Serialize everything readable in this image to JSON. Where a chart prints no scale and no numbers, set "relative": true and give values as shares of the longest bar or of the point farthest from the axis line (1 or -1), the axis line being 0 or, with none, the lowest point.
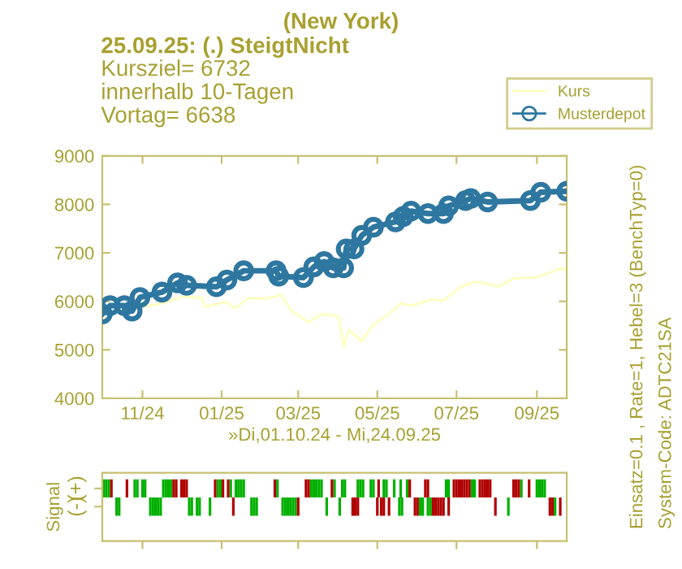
{
  "chart_data": [
    {
      "type": "line",
      "title": "(New York)",
      "subtitle": "25.09.25: (.) SteigtNicht",
      "annotations": [
        "Kursziel= 6732",
        "innerhalb 10-Tagen",
        "Vortag= 6638",
        "Einsatz=0.1 , Rate=1, Hebel=3 (BenchTyp=0)",
        "System-Code: ADTC21SA"
      ],
      "xlabel": "»Di,01.10.24 - Mi,24.09.25",
      "xlim": [
        "2024-10-01",
        "2025-09-24"
      ],
      "xticks": [
        {
          "value": "2024-11-01",
          "label": "11/24"
        },
        {
          "value": "2025-01-01",
          "label": "01/25"
        },
        {
          "value": "2025-03-01",
          "label": "03/25"
        },
        {
          "value": "2025-05-01",
          "label": "05/25"
        },
        {
          "value": "2025-07-01",
          "label": "07/25"
        },
        {
          "value": "2025-09-01",
          "label": "09/25"
        }
      ],
      "ylim": [
        4000,
        9000
      ],
      "yticks": [
        4000,
        5000,
        6000,
        7000,
        8000,
        9000
      ],
      "legend": "top right",
      "series": [
        {
          "name": "Kurs",
          "color": "#ffffc0",
          "marker": "none",
          "x": [
            "2024-10-01",
            "2024-10-26",
            "2024-11-16",
            "2024-12-03",
            "2024-12-17",
            "2024-12-19",
            "2025-01-05",
            "2025-01-11",
            "2025-01-22",
            "2025-02-03",
            "2025-02-16",
            "2025-02-24",
            "2025-03-09",
            "2025-03-19",
            "2025-04-01",
            "2025-04-05",
            "2025-04-09",
            "2025-04-19",
            "2025-04-28",
            "2025-05-10",
            "2025-05-19",
            "2025-05-27",
            "2025-06-13",
            "2025-06-21",
            "2025-07-04",
            "2025-07-16",
            "2025-07-27",
            "2025-08-02",
            "2025-08-14",
            "2025-08-31",
            "2025-09-21",
            "2025-09-24"
          ],
          "values": [
            5740,
            5850,
            5960,
            6100,
            6070,
            5890,
            5990,
            5850,
            6070,
            6050,
            6130,
            5800,
            5570,
            5740,
            5690,
            5070,
            5410,
            5180,
            5520,
            5740,
            5960,
            5910,
            6040,
            6020,
            6300,
            6410,
            6350,
            6300,
            6470,
            6490,
            6690,
            6600
          ]
        },
        {
          "name": "Musterdepot",
          "color": "#2e77a0",
          "marker": "circle",
          "x": [
            "2024-10-01",
            "2024-10-07",
            "2024-10-18",
            "2024-10-24",
            "2024-10-30",
            "2024-11-16",
            "2024-11-28",
            "2024-12-05",
            "2024-12-28",
            "2025-01-05",
            "2025-01-18",
            "2025-02-12",
            "2025-02-14",
            "2025-03-05",
            "2025-03-13",
            "2025-03-21",
            "2025-03-28",
            "2025-04-05",
            "2025-04-07",
            "2025-04-13",
            "2025-04-19",
            "2025-04-28",
            "2025-05-15",
            "2025-05-21",
            "2025-05-27",
            "2025-06-09",
            "2025-06-21",
            "2025-06-25",
            "2025-07-08",
            "2025-07-12",
            "2025-07-25",
            "2025-08-27",
            "2025-09-04",
            "2025-09-24"
          ],
          "values": [
            5740,
            5910,
            5910,
            5800,
            6080,
            6190,
            6380,
            6330,
            6300,
            6440,
            6630,
            6630,
            6520,
            6490,
            6710,
            6820,
            6690,
            6690,
            7080,
            7080,
            7360,
            7530,
            7640,
            7750,
            7860,
            7810,
            7810,
            7970,
            8080,
            8120,
            8050,
            8080,
            8250,
            8270
          ]
        }
      ]
    },
    {
      "type": "bar",
      "ylabel": "Signal",
      "tick_labels": "y",
      "relative": true,
      "annotations": [
        "(+)",
        "(-)"
      ],
      "xlim": [
        "2024-10-01",
        "2025-09-24"
      ],
      "xticks": [
        {
          "value": "2024-11-01",
          "label": null
        },
        {
          "value": "2025-01-01",
          "label": null
        },
        {
          "value": "2025-03-01",
          "label": null
        },
        {
          "value": "2025-05-01",
          "label": null
        },
        {
          "value": "2025-07-01",
          "label": null
        },
        {
          "value": "2025-09-01",
          "label": null
        }
      ],
      "series": [
        {
          "color": "#00b000",
          "x": [
            "2024-10-01",
            "2024-10-03",
            "2024-10-05",
            "2024-10-11",
            "2024-10-13",
            "2024-10-25",
            "2024-10-27",
            "2024-10-31",
            "2024-11-02",
            "2024-11-06",
            "2024-11-08",
            "2024-11-10",
            "2024-11-12",
            "2024-11-14",
            "2024-11-16",
            "2024-11-18",
            "2024-11-20",
            "2024-11-22",
            "2024-12-06",
            "2024-12-08",
            "2024-12-12",
            "2024-12-14",
            "2024-12-22",
            "2024-12-28",
            "2024-12-30",
            "2025-01-07",
            "2025-01-11",
            "2025-01-13",
            "2025-01-15",
            "2025-01-17",
            "2025-01-23",
            "2025-01-25",
            "2025-01-27",
            "2025-02-12",
            "2025-02-16",
            "2025-02-18",
            "2025-02-20",
            "2025-02-22",
            "2025-02-24",
            "2025-02-26",
            "2025-03-10",
            "2025-03-12",
            "2025-03-14",
            "2025-03-16",
            "2025-03-18",
            "2025-03-22",
            "2025-03-28",
            "2025-04-01",
            "2025-04-03",
            "2025-04-05",
            "2025-04-15",
            "2025-04-17",
            "2025-04-19",
            "2025-04-25",
            "2025-04-27",
            "2025-05-05",
            "2025-05-07",
            "2025-05-13",
            "2025-05-17",
            "2025-05-18",
            "2025-05-19",
            "2025-05-23",
            "2025-06-02",
            "2025-06-04",
            "2025-06-08",
            "2025-06-10",
            "2025-06-22",
            "2025-06-24",
            "2025-07-12",
            "2025-07-14",
            "2025-08-09",
            "2025-08-19",
            "2025-08-31",
            "2025-09-02",
            "2025-09-04",
            "2025-09-06",
            "2025-09-14"
          ],
          "values": [
            1,
            1,
            1,
            -1,
            -1,
            1,
            1,
            1,
            1,
            -1,
            -1,
            -1,
            -1,
            -1,
            1,
            1,
            1,
            1,
            -1,
            -1,
            -1,
            -1,
            -1,
            1,
            1,
            1,
            1,
            1,
            1,
            1,
            -1,
            -1,
            -1,
            1,
            -1,
            -1,
            -1,
            -1,
            -1,
            -1,
            1,
            1,
            1,
            1,
            1,
            -1,
            1,
            -1,
            1,
            1,
            1,
            1,
            1,
            1,
            1,
            1,
            1,
            1,
            -1,
            1,
            -1,
            1,
            -1,
            -1,
            -1,
            -1,
            1,
            1,
            1,
            1,
            -1,
            1,
            1,
            1,
            1,
            1,
            -1
          ]
        },
        {
          "color": "#b00000",
          "x": [
            "2024-10-07",
            "2024-10-19",
            "2024-11-24",
            "2024-11-26",
            "2024-11-30",
            "2024-12-02",
            "2024-12-04",
            "2024-12-26",
            "2025-01-01",
            "2025-01-05",
            "2025-01-09",
            "2025-02-10",
            "2025-02-28",
            "2025-03-06",
            "2025-03-08",
            "2025-03-26",
            "2025-04-11",
            "2025-04-13",
            "2025-04-15",
            "2025-04-30",
            "2025-05-01",
            "2025-05-03",
            "2025-05-05",
            "2025-05-09",
            "2025-05-25",
            "2025-05-29",
            "2025-05-31",
            "2025-06-06",
            "2025-06-08",
            "2025-06-12",
            "2025-06-14",
            "2025-06-16",
            "2025-06-18",
            "2025-06-20",
            "2025-06-24",
            "2025-06-28",
            "2025-06-30",
            "2025-07-02",
            "2025-07-04",
            "2025-07-06",
            "2025-07-08",
            "2025-07-10",
            "2025-07-18",
            "2025-07-20",
            "2025-07-22",
            "2025-07-24",
            "2025-07-26",
            "2025-07-30",
            "2025-08-13",
            "2025-08-15",
            "2025-08-17",
            "2025-08-25",
            "2025-09-10",
            "2025-09-12",
            "2025-09-18"
          ],
          "values": [
            1,
            1,
            1,
            1,
            1,
            1,
            1,
            1,
            1,
            1,
            -1,
            1,
            -1,
            1,
            1,
            1,
            -1,
            -1,
            -1,
            -1,
            1,
            -1,
            -1,
            -1,
            1,
            -1,
            -1,
            1,
            1,
            -1,
            -1,
            -1,
            -1,
            -1,
            -1,
            1,
            1,
            1,
            1,
            1,
            1,
            1,
            1,
            1,
            1,
            1,
            1,
            -1,
            1,
            1,
            1,
            1,
            -1,
            -1,
            -1
          ]
        }
      ]
    }
  ]
}
